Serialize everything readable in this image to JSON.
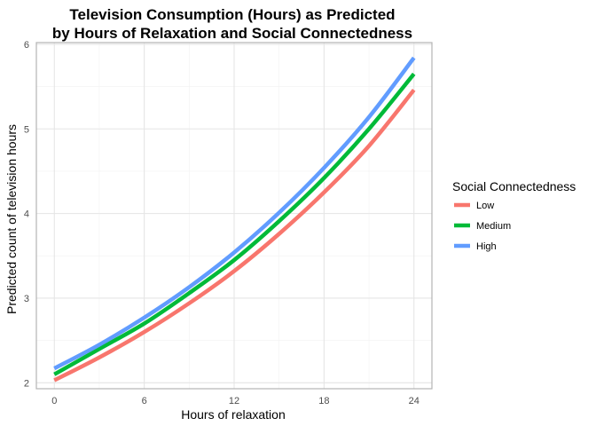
{
  "chart_data": {
    "type": "line",
    "title": "Television Consumption (Hours) as Predicted\nby Hours of Relaxation and Social Connectedness",
    "title_lines": [
      "Television Consumption (Hours) as Predicted",
      "by Hours of Relaxation and Social Connectedness"
    ],
    "xlabel": "Hours of relaxation",
    "ylabel": "Predicted count of television hours",
    "xlim": [
      -1.2,
      25.2
    ],
    "ylim": [
      1.93,
      6.02
    ],
    "x_ticks": [
      0,
      6,
      12,
      18,
      24
    ],
    "y_ticks": [
      2,
      3,
      4,
      5,
      6
    ],
    "grid": true,
    "legend": {
      "title": "Social Connectedness",
      "position": "right",
      "entries": [
        "Low",
        "Medium",
        "High"
      ]
    },
    "series": [
      {
        "name": "Low",
        "color": "#F8766D",
        "x": [
          0,
          3,
          6,
          9,
          12,
          15,
          18,
          21,
          24
        ],
        "y": [
          2.03,
          2.3,
          2.6,
          2.94,
          3.32,
          3.76,
          4.25,
          4.8,
          5.46
        ]
      },
      {
        "name": "Medium",
        "color": "#00BA38",
        "x": [
          0,
          3,
          6,
          9,
          12,
          15,
          18,
          21,
          24
        ],
        "y": [
          2.1,
          2.4,
          2.7,
          3.06,
          3.45,
          3.91,
          4.42,
          5.0,
          5.65
        ]
      },
      {
        "name": "High",
        "color": "#619CFF",
        "x": [
          0,
          3,
          6,
          9,
          12,
          15,
          18,
          21,
          24
        ],
        "y": [
          2.17,
          2.45,
          2.77,
          3.13,
          3.54,
          4.01,
          4.54,
          5.14,
          5.84
        ]
      }
    ]
  }
}
